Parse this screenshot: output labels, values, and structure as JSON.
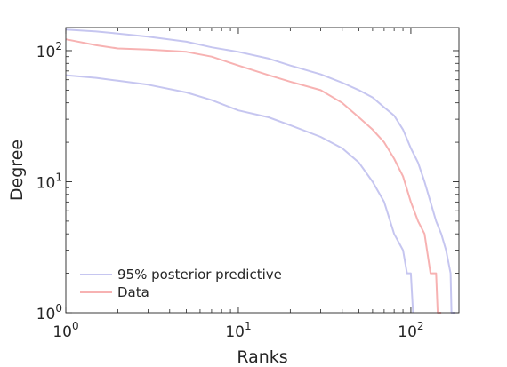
{
  "chart_data": {
    "type": "line",
    "xlabel": "Ranks",
    "ylabel": "Degree",
    "xscale": "log",
    "yscale": "log",
    "xlim": [
      1,
      190
    ],
    "ylim": [
      1,
      150
    ],
    "x_ticks": [
      {
        "value": 1,
        "base": "10",
        "exp": "0"
      },
      {
        "value": 10,
        "base": "10",
        "exp": "1"
      },
      {
        "value": 100,
        "base": "10",
        "exp": "2"
      }
    ],
    "y_ticks": [
      {
        "value": 1,
        "base": "10",
        "exp": "0"
      },
      {
        "value": 10,
        "base": "10",
        "exp": "1"
      },
      {
        "value": 100,
        "base": "10",
        "exp": "2"
      }
    ],
    "grid": false,
    "legend": {
      "placement": "bottom-left",
      "entries": [
        {
          "label": "95% posterior predictive",
          "color": "#c6c6f0"
        },
        {
          "label": "Data",
          "color": "#f7b2b2"
        }
      ]
    },
    "series": [
      {
        "name": "95% posterior predictive",
        "role": "upper",
        "color": "#c6c6f0",
        "x": [
          1,
          1.5,
          2,
          3,
          5,
          7,
          10,
          15,
          20,
          30,
          40,
          50,
          60,
          70,
          80,
          90,
          100,
          110,
          120,
          130,
          140,
          150,
          160,
          170,
          172,
          180
        ],
        "y": [
          145,
          140,
          135,
          128,
          117,
          106,
          98,
          87,
          77,
          66,
          57,
          50,
          44,
          37,
          32,
          25,
          18,
          14,
          10,
          7,
          5,
          4,
          3,
          2,
          1,
          1
        ]
      },
      {
        "name": "95% posterior predictive",
        "role": "lower",
        "color": "#c6c6f0",
        "x": [
          1,
          1.5,
          2,
          3,
          5,
          7,
          10,
          15,
          20,
          30,
          40,
          50,
          60,
          70,
          80,
          90,
          95,
          100,
          103
        ],
        "y": [
          65,
          62,
          59,
          55,
          48,
          42,
          35,
          31,
          27,
          22,
          18,
          14,
          10,
          7,
          4,
          3,
          2,
          2,
          1
        ]
      },
      {
        "name": "Data",
        "color": "#f7b2b2",
        "x": [
          1,
          1.5,
          2,
          3,
          5,
          7,
          10,
          15,
          20,
          30,
          40,
          50,
          60,
          70,
          80,
          90,
          100,
          110,
          120,
          130,
          140,
          143,
          150
        ],
        "y": [
          122,
          110,
          104,
          102,
          98,
          90,
          77,
          65,
          58,
          50,
          40,
          31,
          25,
          20,
          15,
          11,
          7,
          5,
          4,
          2,
          2,
          1,
          1
        ]
      }
    ]
  }
}
